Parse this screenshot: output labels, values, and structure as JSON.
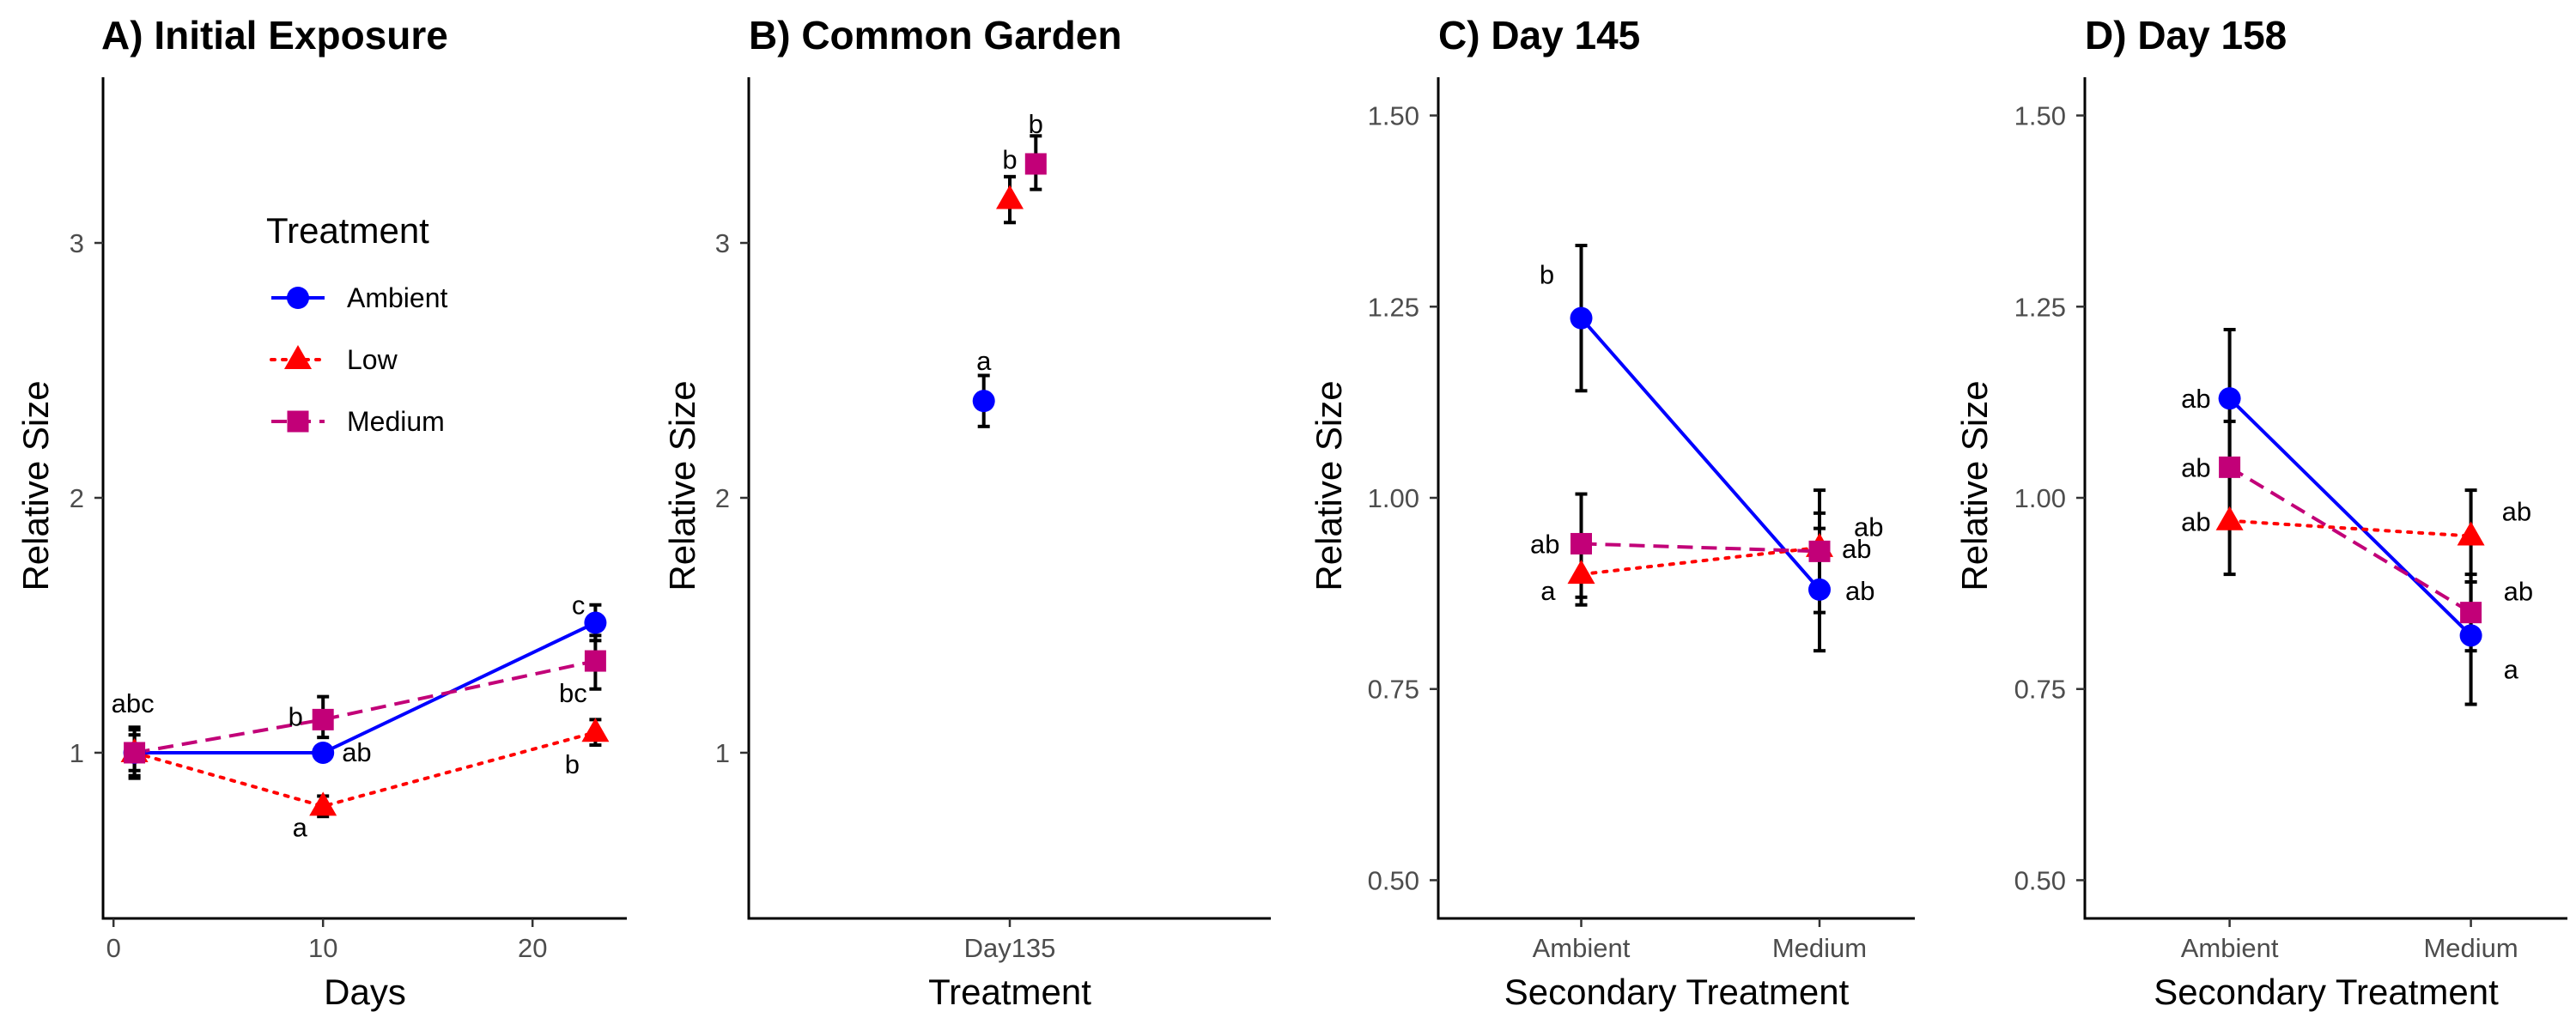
{
  "chart_data": [
    {
      "panel": "A",
      "type": "line",
      "title": "A) Initial Exposure",
      "xlabel": "Days",
      "ylabel": "Relative Size",
      "x_axis": "numeric",
      "xlim": [
        -0.5,
        24.5
      ],
      "ylim": [
        0.35,
        3.65
      ],
      "x_ticks": [
        0,
        10,
        20
      ],
      "x_tick_labels": [
        "0",
        "10",
        "20"
      ],
      "y_ticks": [
        1,
        2,
        3
      ],
      "y_tick_labels": [
        "1",
        "2",
        "3"
      ],
      "grid": false,
      "series": [
        {
          "name": "Ambient",
          "color": "#0000FF",
          "marker": "circle",
          "linestyle": "solid",
          "points": [
            {
              "x": 1,
              "y": 1.0,
              "lo": 0.91,
              "hi": 1.09,
              "label": "abc"
            },
            {
              "x": 10,
              "y": 1.0,
              "lo": 0.97,
              "hi": 1.03,
              "label": "ab"
            },
            {
              "x": 23,
              "y": 1.51,
              "lo": 1.44,
              "hi": 1.58,
              "label": "c"
            }
          ]
        },
        {
          "name": "Low",
          "color": "#FF0000",
          "marker": "triangle",
          "linestyle": "dotted",
          "points": [
            {
              "x": 1,
              "y": 1.0,
              "lo": 0.9,
              "hi": 1.1,
              "label": ""
            },
            {
              "x": 10,
              "y": 0.79,
              "lo": 0.75,
              "hi": 0.83,
              "label": "a"
            },
            {
              "x": 23,
              "y": 1.08,
              "lo": 1.03,
              "hi": 1.13,
              "label": "b"
            }
          ]
        },
        {
          "name": "Medium",
          "color": "#C20078",
          "marker": "square",
          "linestyle": "dashed",
          "points": [
            {
              "x": 1,
              "y": 1.0,
              "lo": 0.93,
              "hi": 1.07,
              "label": ""
            },
            {
              "x": 10,
              "y": 1.13,
              "lo": 1.06,
              "hi": 1.22,
              "label": "b"
            },
            {
              "x": 23,
              "y": 1.36,
              "lo": 1.25,
              "hi": 1.46,
              "label": "bc"
            }
          ]
        }
      ],
      "legend": {
        "title": "Treatment",
        "position": "top-left",
        "entries": [
          {
            "name": "Ambient",
            "color": "#0000FF",
            "marker": "circle",
            "linestyle": "solid"
          },
          {
            "name": "Low",
            "color": "#FF0000",
            "marker": "triangle",
            "linestyle": "dotted"
          },
          {
            "name": "Medium",
            "color": "#C20078",
            "marker": "square",
            "linestyle": "dashed"
          }
        ]
      }
    },
    {
      "panel": "B",
      "type": "scatter",
      "title": "B) Common Garden",
      "xlabel": "Treatment",
      "ylabel": "Relative Size",
      "x_axis": "categorical",
      "categories": [
        "Day135"
      ],
      "ylim": [
        0.35,
        3.65
      ],
      "y_ticks": [
        1,
        2,
        3
      ],
      "y_tick_labels": [
        "1",
        "2",
        "3"
      ],
      "grid": false,
      "series": [
        {
          "name": "Ambient",
          "color": "#0000FF",
          "marker": "circle",
          "linestyle": "none",
          "dodge": -0.3,
          "points": [
            {
              "x": "Day135",
              "y": 2.38,
              "lo": 2.28,
              "hi": 2.48,
              "label": "a"
            }
          ]
        },
        {
          "name": "Low",
          "color": "#FF0000",
          "marker": "triangle",
          "linestyle": "none",
          "dodge": 0,
          "points": [
            {
              "x": "Day135",
              "y": 3.17,
              "lo": 3.08,
              "hi": 3.26,
              "label": "b"
            }
          ]
        },
        {
          "name": "Medium",
          "color": "#C20078",
          "marker": "square",
          "linestyle": "none",
          "dodge": 0.3,
          "points": [
            {
              "x": "Day135",
              "y": 3.31,
              "lo": 3.21,
              "hi": 3.42,
              "label": "b"
            }
          ]
        }
      ]
    },
    {
      "panel": "C",
      "type": "line",
      "title": "C) Day 145",
      "xlabel": "Secondary Treatment",
      "ylabel": "Relative Size",
      "x_axis": "categorical",
      "categories": [
        "Ambient",
        "Medium"
      ],
      "ylim": [
        0.45,
        1.55
      ],
      "y_ticks": [
        0.5,
        0.75,
        1.0,
        1.25,
        1.5
      ],
      "y_tick_labels": [
        "0.50",
        "0.75",
        "1.00",
        "1.25",
        "1.50"
      ],
      "grid": false,
      "series": [
        {
          "name": "Ambient",
          "color": "#0000FF",
          "marker": "circle",
          "linestyle": "solid",
          "points": [
            {
              "x": "Ambient",
              "y": 1.235,
              "lo": 1.14,
              "hi": 1.33,
              "label": "b"
            },
            {
              "x": "Medium",
              "y": 0.88,
              "lo": 0.8,
              "hi": 0.96,
              "label": "ab"
            }
          ]
        },
        {
          "name": "Low",
          "color": "#FF0000",
          "marker": "triangle",
          "linestyle": "dotted",
          "points": [
            {
              "x": "Ambient",
              "y": 0.9,
              "lo": 0.86,
              "hi": 0.94,
              "label": "a"
            },
            {
              "x": "Medium",
              "y": 0.935,
              "lo": 0.89,
              "hi": 0.98,
              "label": "ab"
            }
          ]
        },
        {
          "name": "Medium",
          "color": "#C20078",
          "marker": "square",
          "linestyle": "dashed",
          "points": [
            {
              "x": "Ambient",
              "y": 0.94,
              "lo": 0.87,
              "hi": 1.005,
              "label": "ab"
            },
            {
              "x": "Medium",
              "y": 0.93,
              "lo": 0.85,
              "hi": 1.01,
              "label": "ab"
            }
          ]
        }
      ]
    },
    {
      "panel": "D",
      "type": "line",
      "title": "D) Day 158",
      "xlabel": "Secondary Treatment",
      "ylabel": "Relative Size",
      "x_axis": "categorical",
      "categories": [
        "Ambient",
        "Medium"
      ],
      "ylim": [
        0.45,
        1.55
      ],
      "y_ticks": [
        0.5,
        0.75,
        1.0,
        1.25,
        1.5
      ],
      "y_tick_labels": [
        "0.50",
        "0.75",
        "1.00",
        "1.25",
        "1.50"
      ],
      "grid": false,
      "series": [
        {
          "name": "Ambient",
          "color": "#0000FF",
          "marker": "circle",
          "linestyle": "solid",
          "points": [
            {
              "x": "Ambient",
              "y": 1.13,
              "lo": 1.04,
              "hi": 1.22,
              "label": "ab"
            },
            {
              "x": "Medium",
              "y": 0.82,
              "lo": 0.73,
              "hi": 0.9,
              "label": "a"
            }
          ]
        },
        {
          "name": "Low",
          "color": "#FF0000",
          "marker": "triangle",
          "linestyle": "dotted",
          "points": [
            {
              "x": "Ambient",
              "y": 0.97,
              "lo": 0.9,
              "hi": 1.04,
              "label": "ab"
            },
            {
              "x": "Medium",
              "y": 0.95,
              "lo": 0.89,
              "hi": 1.01,
              "label": "ab"
            }
          ]
        },
        {
          "name": "Medium",
          "color": "#C20078",
          "marker": "square",
          "linestyle": "dashed",
          "points": [
            {
              "x": "Ambient",
              "y": 1.04,
              "lo": 0.97,
              "hi": 1.1,
              "label": "ab"
            },
            {
              "x": "Medium",
              "y": 0.85,
              "lo": 0.8,
              "hi": 0.89,
              "label": "ab"
            }
          ]
        }
      ]
    }
  ]
}
